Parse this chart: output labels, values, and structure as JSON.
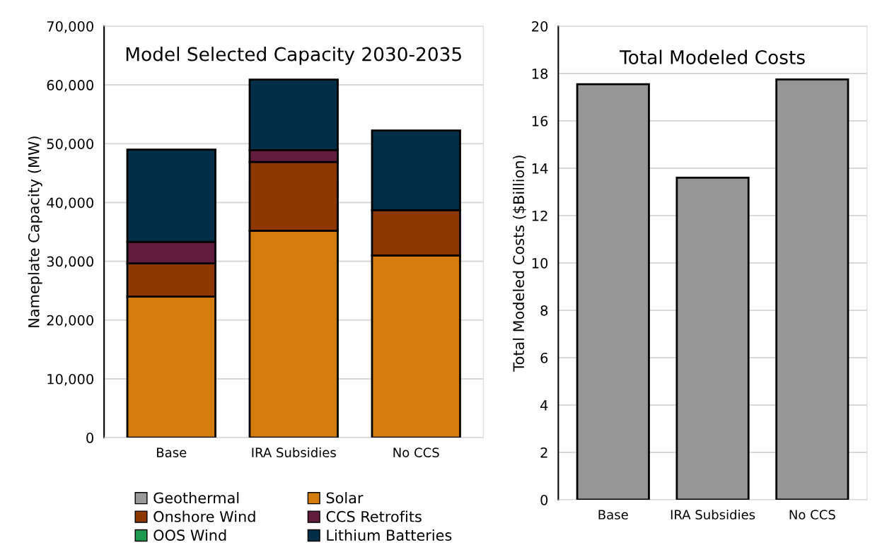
{
  "chart_data": [
    {
      "type": "bar",
      "title": "Model Selected Capacity 2030-2035",
      "ylabel": "Nameplate Capacity (MW)",
      "categories": [
        "Base",
        "IRA Subsidies",
        "No CCS"
      ],
      "stacked": true,
      "series": [
        {
          "name": "Geothermal",
          "color": "#999999",
          "values": [
            0,
            0,
            0
          ]
        },
        {
          "name": "Solar",
          "color": "#d37c0e",
          "values": [
            24000,
            35200,
            31000
          ]
        },
        {
          "name": "Onshore Wind",
          "color": "#8c3800",
          "values": [
            5650,
            11700,
            7700
          ]
        },
        {
          "name": "CCS Retrofits",
          "color": "#621d3e",
          "values": [
            3650,
            2000,
            0
          ]
        },
        {
          "name": "OOS Wind",
          "color": "#1e9a4f",
          "values": [
            0,
            0,
            0
          ]
        },
        {
          "name": "Lithium Batteries",
          "color": "#022f47",
          "values": [
            15700,
            12000,
            13550
          ]
        }
      ],
      "ylim": [
        0,
        70000
      ],
      "yticks": [
        {
          "value": 0,
          "label": "0"
        },
        {
          "value": 10000,
          "label": "10,000"
        },
        {
          "value": 20000,
          "label": "20,000"
        },
        {
          "value": 30000,
          "label": "30,000"
        },
        {
          "value": 40000,
          "label": "40,000"
        },
        {
          "value": 50000,
          "label": "50,000"
        },
        {
          "value": 60000,
          "label": "60,000"
        },
        {
          "value": 70000,
          "label": "70,000"
        }
      ],
      "grid": "y",
      "legend": "bottom"
    },
    {
      "type": "bar",
      "title": "Total Modeled Costs",
      "ylabel": "Total Modeled Costs ($Billion)",
      "categories": [
        "Base",
        "IRA Subsidies",
        "No CCS"
      ],
      "series": [
        {
          "color": "#969696",
          "values": [
            17.55,
            13.6,
            17.75
          ]
        }
      ],
      "ylim": [
        0,
        20
      ],
      "yticks": [
        0,
        2,
        4,
        6,
        8,
        10,
        12,
        14,
        16,
        18,
        20
      ],
      "grid": "y"
    }
  ]
}
